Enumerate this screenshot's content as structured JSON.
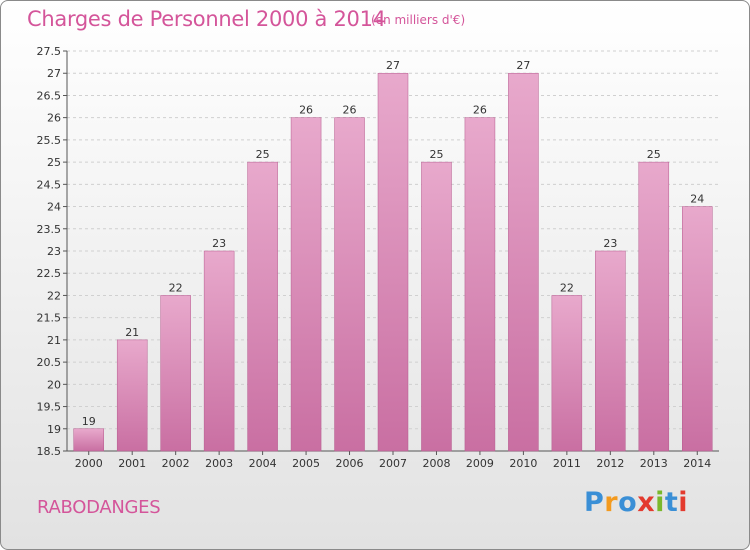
{
  "header": {
    "title": "Charges de Personnel 2000 à 2014",
    "subtitle": "(en milliers d'€)"
  },
  "footer": {
    "place": "RABODANGES",
    "logo": "Proxiti",
    "logo_colors": [
      "#3a8fd6",
      "#f39a1e",
      "#3a8fd6",
      "#e33a2e",
      "#7ab82c",
      "#3a8fd6",
      "#e33a2e"
    ]
  },
  "chart_data": {
    "type": "bar",
    "title": "Charges de Personnel 2000 à 2014",
    "subtitle": "(en milliers d'€)",
    "categories": [
      "2000",
      "2001",
      "2002",
      "2003",
      "2004",
      "2005",
      "2006",
      "2007",
      "2008",
      "2009",
      "2010",
      "2011",
      "2012",
      "2013",
      "2014"
    ],
    "values": [
      19,
      21,
      22,
      23,
      25,
      26,
      26,
      27,
      25,
      26,
      27,
      22,
      23,
      25,
      24
    ],
    "data_labels": [
      "19",
      "21",
      "22",
      "23",
      "25",
      "26",
      "26",
      "27",
      "25",
      "26",
      "27",
      "22",
      "23",
      "25",
      "24"
    ],
    "ylim": [
      18.5,
      27.5
    ],
    "yticks": [
      "18.5",
      "19",
      "19.5",
      "20",
      "20.5",
      "21",
      "21.5",
      "22",
      "22.5",
      "23",
      "23.5",
      "24",
      "24.5",
      "25",
      "25.5",
      "26",
      "26.5",
      "27",
      "27.5"
    ],
    "grid": true,
    "bar_color": "#c96fa2",
    "bar_color_light": "#e8a9cc"
  }
}
